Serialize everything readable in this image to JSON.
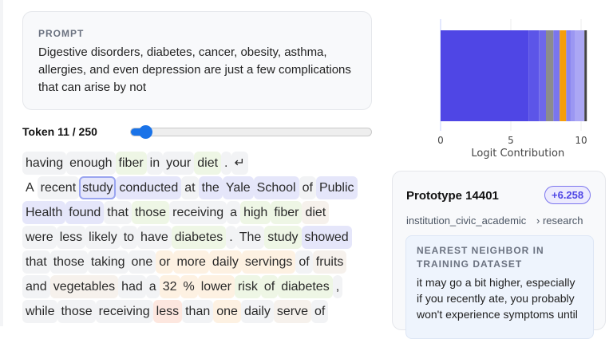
{
  "prompt": {
    "label": "PROMPT",
    "text": "Digestive disorders, diabetes, cancer, obesity, asthma, allergies, and even depression are just a few complications that can arise by not"
  },
  "token_nav": {
    "label": "Token 11 / 250",
    "current": 11,
    "total": 250
  },
  "colors": {
    "accent": "#1a73e8",
    "prototype": "#4f46e5"
  },
  "tokens": [
    [
      [
        "having",
        "g"
      ],
      [
        "enough",
        "g"
      ],
      [
        "fiber",
        "gr"
      ],
      [
        "in",
        "g"
      ],
      [
        "your",
        "g"
      ],
      [
        "diet",
        "gr"
      ],
      [
        ".",
        "g"
      ],
      [
        "↵",
        "g"
      ]
    ],
    [
      [
        "A",
        "n"
      ],
      [
        "recent",
        "g"
      ],
      [
        "study",
        "sel"
      ],
      [
        "conducted",
        "b"
      ],
      [
        "at",
        "g"
      ],
      [
        "the",
        "b"
      ],
      [
        "Yale",
        "b"
      ],
      [
        "School",
        "b"
      ],
      [
        "of",
        "g"
      ],
      [
        "Public",
        "b"
      ]
    ],
    [
      [
        "Health",
        "b"
      ],
      [
        "found",
        "b"
      ],
      [
        "that",
        "g"
      ],
      [
        "those",
        "gr"
      ],
      [
        "receiving",
        "g"
      ],
      [
        "a",
        "g"
      ],
      [
        "high",
        "gr"
      ],
      [
        "fiber",
        "gr"
      ],
      [
        "diet",
        "be"
      ]
    ],
    [
      [
        "were",
        "g"
      ],
      [
        "less",
        "g"
      ],
      [
        "likely",
        "g"
      ],
      [
        "to",
        "g"
      ],
      [
        "have",
        "g"
      ],
      [
        "diabetes",
        "gr"
      ],
      [
        ".",
        "g"
      ],
      [
        "The",
        "g"
      ],
      [
        "study",
        "gr"
      ],
      [
        "showed",
        "b"
      ]
    ],
    [
      [
        "that",
        "g"
      ],
      [
        "those",
        "g"
      ],
      [
        "taking",
        "g"
      ],
      [
        "one",
        "g"
      ],
      [
        "or",
        "o"
      ],
      [
        "more",
        "o"
      ],
      [
        "daily",
        "o"
      ],
      [
        "servings",
        "o"
      ],
      [
        "of",
        "g"
      ],
      [
        "fruits",
        "be"
      ]
    ],
    [
      [
        "and",
        "g"
      ],
      [
        "vegetables",
        "be"
      ],
      [
        "had",
        "g"
      ],
      [
        "a",
        "g"
      ],
      [
        "32",
        "o"
      ],
      [
        "%",
        "o"
      ],
      [
        "lower",
        "o"
      ],
      [
        "risk",
        "gr"
      ],
      [
        "of",
        "gr"
      ],
      [
        "diabetes",
        "gr"
      ],
      [
        ",",
        "g"
      ]
    ],
    [
      [
        "while",
        "g"
      ],
      [
        "those",
        "g"
      ],
      [
        "receiving",
        "g"
      ],
      [
        "less",
        "r"
      ],
      [
        "than",
        "g"
      ],
      [
        "one",
        "o"
      ],
      [
        "daily",
        "g"
      ],
      [
        "serve",
        "be"
      ],
      [
        "of",
        "g"
      ]
    ]
  ],
  "chart_data": {
    "type": "bar",
    "orientation": "horizontal",
    "stacked": true,
    "xlabel": "Logit Contribution",
    "xlim": [
      0,
      10.5
    ],
    "xticks": [
      "0",
      "5",
      "10"
    ],
    "grid": true,
    "segments": [
      {
        "value": 6.26,
        "color": "#4f46e5"
      },
      {
        "value": 0.74,
        "color": "#5c55e8"
      },
      {
        "value": 0.5,
        "color": "#6e67ea"
      },
      {
        "value": 0.53,
        "color": "#8c8c8c"
      },
      {
        "value": 0.45,
        "color": "#7a75ee"
      },
      {
        "value": 0.46,
        "color": "#f59e0b"
      },
      {
        "value": 0.32,
        "color": "#8a86f0"
      },
      {
        "value": 0.32,
        "color": "#9b97f2"
      },
      {
        "value": 0.66,
        "color": "#aba7f4"
      },
      {
        "value": 0.17,
        "color": "#444444"
      }
    ]
  },
  "prototype": {
    "title": "Prototype 14401",
    "score": "+6.258",
    "category": "institution_civic_academic",
    "subcategory": "› research",
    "neighbor_label": "NEAREST NEIGHBOR IN TRAINING DATASET",
    "neighbor_text": "it may go a bit higher, especially if you recently ate, you probably won't experience symptoms until"
  }
}
